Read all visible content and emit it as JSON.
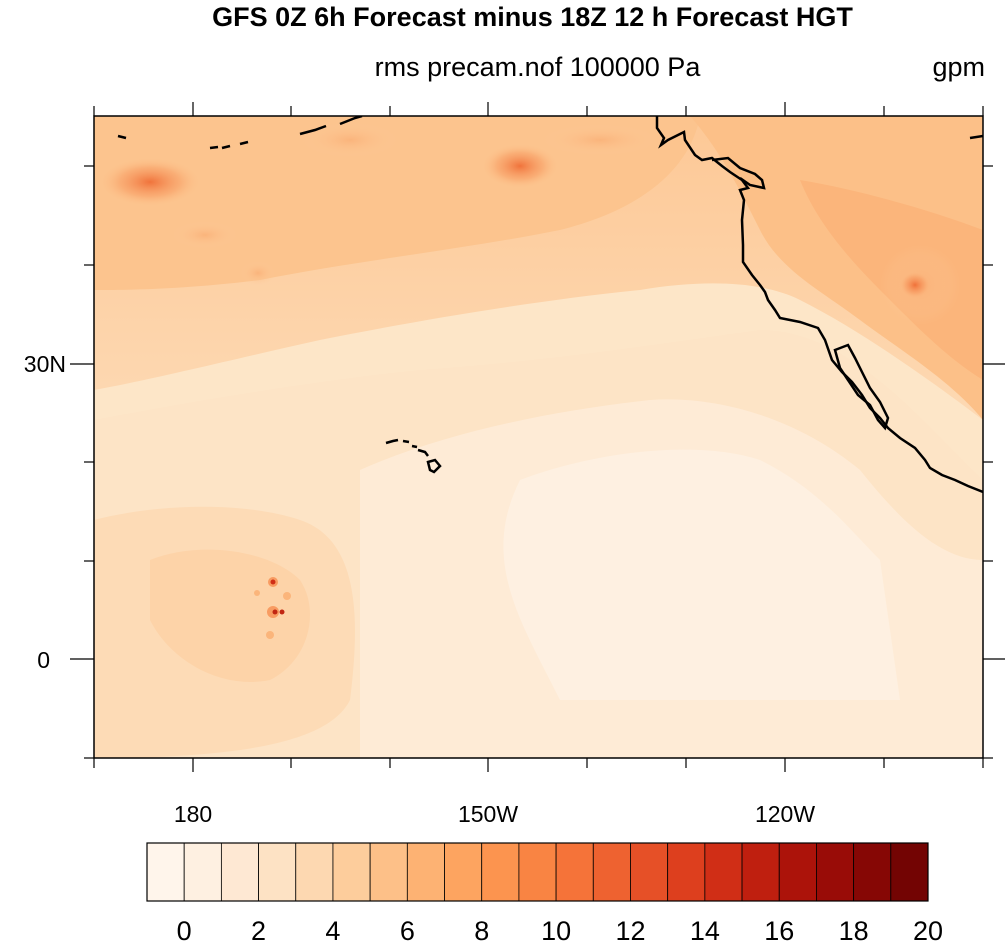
{
  "title": "GFS 0Z 6h Forecast minus 18Z 12 h Forecast HGT",
  "subtitle": "rms precam.nof 100000 Pa",
  "units": "gpm",
  "map": {
    "lon_labels": [
      "180",
      "150W",
      "120W"
    ],
    "lat_labels": [
      "30N",
      "0"
    ]
  },
  "colorbar": {
    "labels": [
      "0",
      "2",
      "4",
      "6",
      "8",
      "10",
      "12",
      "14",
      "16",
      "18",
      "20"
    ],
    "colors": [
      "#fff5eb",
      "#fef0e1",
      "#fee8d3",
      "#fde2c4",
      "#fdd8b1",
      "#fdcd9c",
      "#fdc088",
      "#fdb273",
      "#fda460",
      "#fc944f",
      "#f98443",
      "#f57339",
      "#ee6230",
      "#e65027",
      "#dd3f1e",
      "#d02e16",
      "#bf1f0f",
      "#ac130a",
      "#990c07",
      "#860705",
      "#730403"
    ]
  }
}
